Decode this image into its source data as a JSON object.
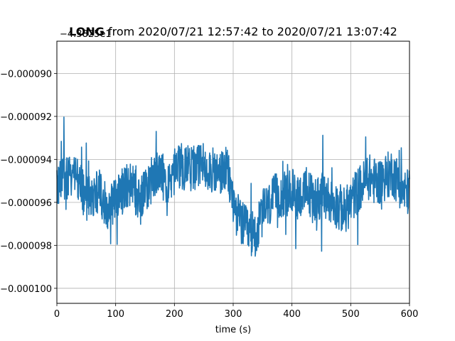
{
  "chart_data": {
    "type": "line",
    "title_bold": "LONG",
    "title_rest": " from 2020/07/21 12:57:42 to 2020/07/21 13:07:42",
    "offset_label": "−4.3825e1",
    "xlabel": "time (s)",
    "ylabel": "",
    "xlim": [
      0,
      600
    ],
    "ylim": [
      -0.0001007,
      -8.85e-05
    ],
    "x_ticks": [
      0,
      100,
      200,
      300,
      400,
      500,
      600
    ],
    "x_tick_labels": [
      "0",
      "100",
      "200",
      "300",
      "400",
      "500",
      "600"
    ],
    "y_ticks": [
      -9e-05,
      -9.2e-05,
      -9.4e-05,
      -9.6e-05,
      -9.8e-05,
      -0.0001
    ],
    "y_tick_labels": [
      "−0.000090",
      "−0.000092",
      "−0.000094",
      "−0.000096",
      "−0.000098",
      "−0.000100"
    ],
    "grid": true,
    "line_color": "#1f77b4",
    "series": [
      {
        "x": [
          0,
          10,
          20,
          30,
          40,
          50,
          60,
          70,
          80,
          90,
          100,
          110,
          120,
          130,
          140,
          150,
          160,
          170,
          180,
          190,
          200,
          210,
          220,
          230,
          240,
          250,
          260,
          270,
          280,
          290,
          300,
          310,
          320,
          330,
          340,
          350,
          360,
          370,
          380,
          390,
          400,
          410,
          420,
          430,
          440,
          450,
          460,
          470,
          480,
          490,
          500,
          510,
          520,
          530,
          540,
          550,
          560,
          570,
          580,
          590,
          600
        ],
        "values": [
          -9.55e-05,
          -9.48e-05,
          -9.5e-05,
          -9.46e-05,
          -9.52e-05,
          -9.58e-05,
          -9.56e-05,
          -9.54e-05,
          -9.6e-05,
          -9.62e-05,
          -9.58e-05,
          -9.55e-05,
          -9.52e-05,
          -9.54e-05,
          -9.58e-05,
          -9.55e-05,
          -9.5e-05,
          -9.47e-05,
          -9.48e-05,
          -9.5e-05,
          -9.46e-05,
          -9.43e-05,
          -9.44e-05,
          -9.45e-05,
          -9.44e-05,
          -9.42e-05,
          -9.44e-05,
          -9.47e-05,
          -9.46e-05,
          -9.45e-05,
          -9.6e-05,
          -9.68e-05,
          -9.72e-05,
          -9.75e-05,
          -9.74e-05,
          -9.65e-05,
          -9.62e-05,
          -9.58e-05,
          -9.56e-05,
          -9.57e-05,
          -9.55e-05,
          -9.57e-05,
          -9.56e-05,
          -9.56e-05,
          -9.58e-05,
          -9.57e-05,
          -9.58e-05,
          -9.6e-05,
          -9.62e-05,
          -9.64e-05,
          -9.6e-05,
          -9.55e-05,
          -9.52e-05,
          -9.48e-05,
          -9.5e-05,
          -9.5e-05,
          -9.48e-05,
          -9.46e-05,
          -9.5e-05,
          -9.55e-05,
          -9.55e-05
        ]
      }
    ],
    "noise_amplitude": 1.1e-06
  }
}
